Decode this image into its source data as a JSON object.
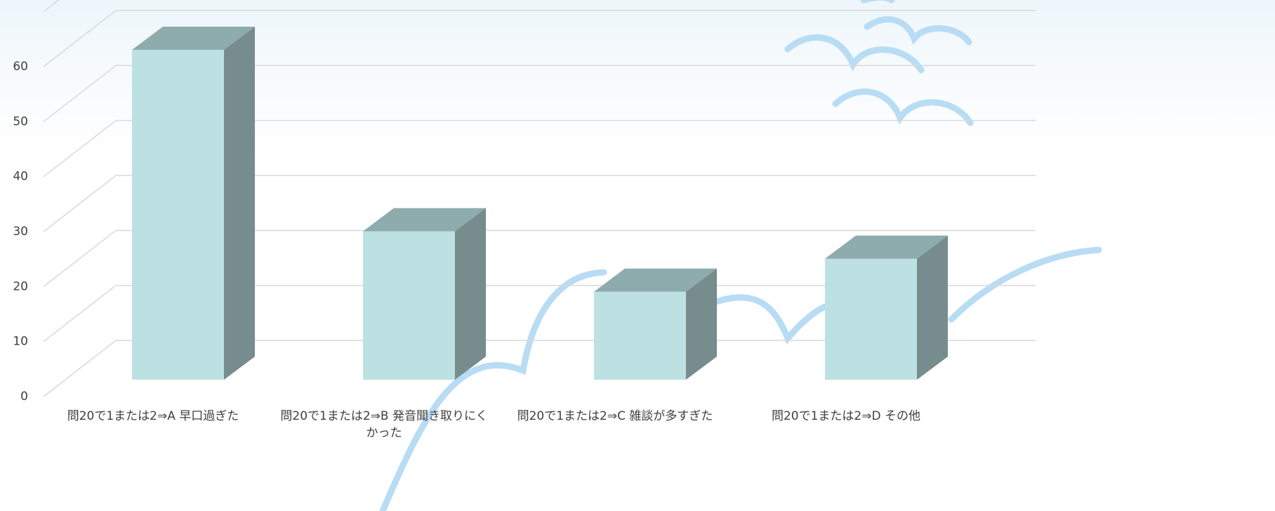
{
  "chart_data": {
    "type": "bar3d",
    "categories": [
      "問20で1または2⇒A 早口過ぎた",
      "問20で1または2⇒B 発音聞き取りにくかった",
      "問20で1または2⇒C 雑談が多すぎた",
      "問20で1または2⇒D その他"
    ],
    "values": [
      60,
      27,
      16,
      22
    ],
    "colors": {
      "front": "#bde1e3",
      "top": "#8eabae",
      "side": "#768c8d"
    },
    "ylim": [
      0,
      70
    ],
    "yticks": [
      0,
      10,
      20,
      30,
      40,
      50,
      60
    ],
    "grid": true
  }
}
